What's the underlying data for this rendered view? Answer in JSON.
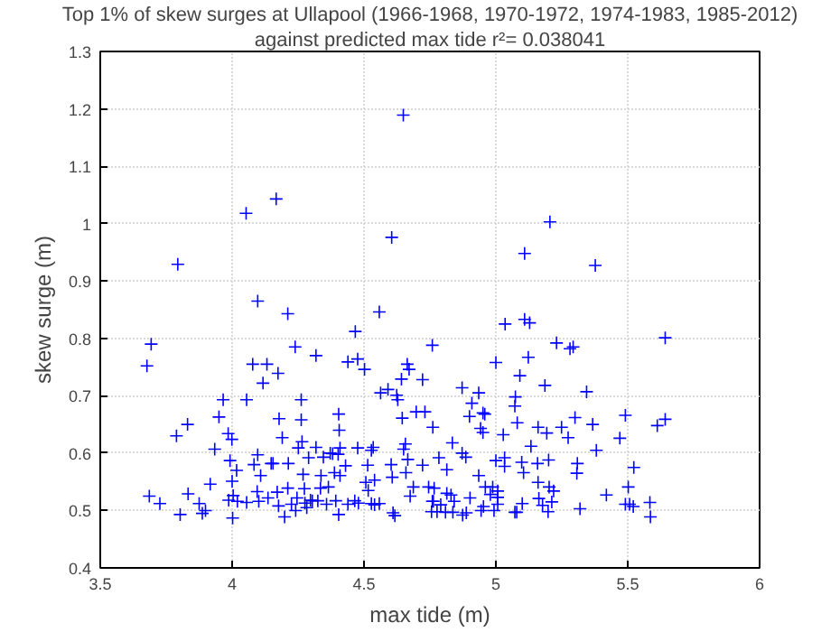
{
  "chart_data": {
    "type": "scatter",
    "title": "Top 1% of skew surges at Ullapool (1966-1968, 1970-1972, 1974-1983, 1985-2012)",
    "subtitle": "against predicted max tide r²= 0.038041",
    "xlabel": "max tide (m)",
    "ylabel": "skew surge (m)",
    "xlim": [
      3.5,
      6
    ],
    "ylim": [
      0.4,
      1.3
    ],
    "xticks": [
      3.5,
      4,
      4.5,
      5,
      5.5,
      6
    ],
    "yticks": [
      0.4,
      0.5,
      0.6,
      0.7,
      0.8,
      0.9,
      1,
      1.1,
      1.2,
      1.3
    ],
    "grid": true,
    "marker": "cross",
    "series": [
      {
        "color": "#0000ff",
        "x": [
          3.794,
          3.693,
          3.677,
          3.686,
          3.789,
          3.831,
          3.726,
          3.803,
          3.833,
          3.875,
          3.887,
          3.899,
          3.917,
          3.934,
          3.95,
          3.966,
          3.985,
          3.999,
          3.992,
          4.0,
          4.004,
          3.987,
          4.002,
          4.017,
          4.02,
          4.055,
          4.055,
          4.078,
          4.097,
          4.083,
          4.097,
          4.095,
          4.101,
          4.108,
          4.117,
          4.132,
          4.136,
          4.148,
          4.155,
          4.171,
          4.176,
          4.174,
          4.178,
          4.19,
          4.199,
          4.211,
          4.213,
          4.211,
          4.225,
          4.239,
          4.241,
          4.246,
          4.251,
          4.262,
          4.262,
          4.265,
          4.269,
          4.274,
          4.276,
          4.283,
          4.29,
          4.297,
          4.304,
          4.318,
          4.318,
          4.325,
          4.335,
          4.337,
          4.346,
          4.358,
          4.365,
          4.372,
          4.381,
          4.388,
          4.393,
          4.402,
          4.404,
          4.406,
          4.404,
          4.409,
          4.409,
          4.43,
          4.439,
          4.439,
          4.465,
          4.467,
          4.476,
          4.476,
          4.479,
          4.502,
          4.507,
          4.514,
          4.516,
          4.528,
          4.528,
          4.535,
          4.54,
          4.54,
          4.558,
          4.563,
          4.558,
          4.591,
          4.603,
          4.605,
          4.607,
          4.61,
          4.617,
          4.624,
          4.628,
          4.642,
          4.645,
          4.65,
          4.657,
          4.659,
          4.664,
          4.671,
          4.666,
          4.675,
          4.687,
          4.698,
          4.722,
          4.722,
          4.731,
          4.745,
          4.759,
          4.761,
          4.759,
          4.766,
          4.053,
          4.167,
          4.649,
          5.205,
          5.109,
          5.377,
          5.035,
          5.109,
          5.128,
          5.23,
          5.281,
          5.293,
          5.642,
          5.0,
          5.123,
          5.091,
          5.186,
          4.872,
          4.935,
          5.074,
          5.344,
          4.909,
          5.072,
          4.9,
          4.951,
          4.958,
          5.081,
          5.3,
          5.491,
          5.642,
          5.612,
          4.942,
          4.951,
          5.028,
          5.16,
          5.193,
          5.249,
          5.274,
          5.367,
          5.47,
          4.835,
          5.133,
          5.381,
          4.872,
          4.886,
          4.784,
          5.0,
          5.033,
          5.033,
          5.098,
          5.158,
          5.2,
          5.309,
          5.307,
          5.523,
          4.814,
          4.935,
          4.96,
          4.988,
          5.007,
          5.105,
          5.16,
          5.202,
          5.219,
          5.502,
          4.814,
          4.83,
          4.902,
          4.979,
          5.007,
          5.163,
          5.419,
          4.763,
          4.842,
          4.791,
          4.953,
          5.007,
          5.1,
          5.177,
          5.212,
          5.491,
          5.507,
          5.521,
          5.584,
          4.756,
          4.777,
          4.809,
          4.837,
          4.874,
          4.888,
          4.944,
          4.993,
          5.072,
          5.079,
          5.198,
          5.319,
          5.586
        ],
        "values": [
          0.929,
          0.79,
          0.752,
          0.525,
          0.63,
          0.65,
          0.512,
          0.493,
          0.529,
          0.512,
          0.495,
          0.5,
          0.546,
          0.607,
          0.663,
          0.693,
          0.634,
          0.624,
          0.587,
          0.551,
          0.526,
          0.518,
          0.487,
          0.57,
          0.516,
          0.514,
          0.693,
          0.755,
          0.865,
          0.58,
          0.597,
          0.533,
          0.516,
          0.561,
          0.722,
          0.755,
          0.522,
          0.582,
          0.582,
          0.532,
          0.508,
          0.739,
          0.66,
          0.627,
          0.489,
          0.843,
          0.582,
          0.539,
          0.511,
          0.785,
          0.5,
          0.522,
          0.609,
          0.693,
          0.658,
          0.62,
          0.563,
          0.538,
          0.513,
          0.505,
          0.592,
          0.518,
          0.517,
          0.77,
          0.61,
          0.517,
          0.539,
          0.561,
          0.593,
          0.511,
          0.541,
          0.6,
          0.599,
          0.566,
          0.517,
          0.598,
          0.668,
          0.64,
          0.493,
          0.561,
          0.609,
          0.578,
          0.759,
          0.511,
          0.517,
          0.812,
          0.764,
          0.609,
          0.513,
          0.746,
          0.549,
          0.579,
          0.535,
          0.605,
          0.512,
          0.61,
          0.553,
          0.51,
          0.512,
          0.705,
          0.846,
          0.711,
          0.58,
          0.976,
          0.558,
          0.496,
          0.491,
          0.701,
          0.693,
          0.729,
          0.661,
          0.607,
          0.616,
          0.566,
          0.755,
          0.746,
          0.589,
          0.525,
          0.541,
          0.672,
          0.728,
          0.579,
          0.672,
          0.541,
          0.788,
          0.645,
          0.516,
          0.539,
          1.018,
          1.043,
          1.189,
          1.003,
          0.948,
          0.927,
          0.825,
          0.833,
          0.827,
          0.792,
          0.782,
          0.785,
          0.801,
          0.758,
          0.767,
          0.735,
          0.718,
          0.714,
          0.705,
          0.698,
          0.707,
          0.687,
          0.682,
          0.664,
          0.67,
          0.668,
          0.653,
          0.662,
          0.666,
          0.659,
          0.648,
          0.643,
          0.636,
          0.632,
          0.645,
          0.635,
          0.645,
          0.627,
          0.65,
          0.626,
          0.618,
          0.612,
          0.605,
          0.6,
          0.593,
          0.592,
          0.587,
          0.592,
          0.577,
          0.584,
          0.582,
          0.588,
          0.582,
          0.565,
          0.575,
          0.571,
          0.561,
          0.541,
          0.541,
          0.534,
          0.566,
          0.549,
          0.541,
          0.534,
          0.541,
          0.53,
          0.527,
          0.522,
          0.528,
          0.523,
          0.521,
          0.527,
          0.516,
          0.516,
          0.51,
          0.507,
          0.511,
          0.512,
          0.509,
          0.515,
          0.511,
          0.511,
          0.507,
          0.514,
          0.498,
          0.498,
          0.497,
          0.497,
          0.492,
          0.496,
          0.5,
          0.5,
          0.497,
          0.497,
          0.498,
          0.503,
          0.489
        ]
      }
    ]
  }
}
